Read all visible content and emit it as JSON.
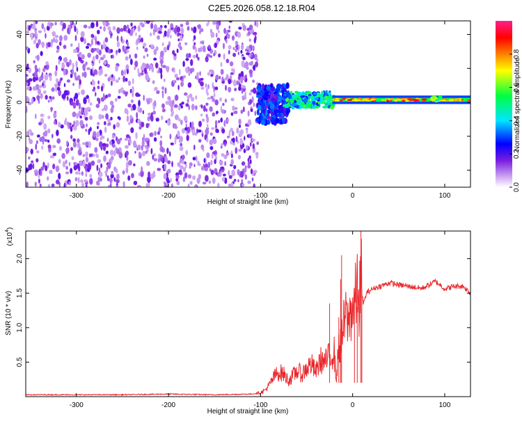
{
  "title": "C2E5.2026.058.12.18.R04",
  "chart_data": [
    {
      "type": "heatmap",
      "xlabel": "Height of straight line (km)",
      "ylabel": "Frequency (Hz)",
      "xlim": [
        -355,
        128
      ],
      "ylim": [
        -50,
        48
      ],
      "xticks": [
        -300,
        -200,
        -100,
        0,
        100
      ],
      "yticks": [
        -40,
        -20,
        0,
        20,
        40
      ],
      "colorbar": {
        "label": "Normalized spectral amplitude",
        "range": [
          0,
          1
        ],
        "ticks": [
          0.0,
          0.2,
          0.4,
          0.6,
          0.8
        ],
        "colors": [
          "#ffffff",
          "#d9b8f5",
          "#7a1ee0",
          "#0000ff",
          "#00e5ff",
          "#00ff40",
          "#ffff00",
          "#ff8000",
          "#ff0000",
          "#ff1e8c"
        ]
      },
      "regions": [
        {
          "x_range": [
            -355,
            -103
          ],
          "f_range": [
            -50,
            48
          ],
          "level": "broadband noise, amplitude 0.1-0.35"
        },
        {
          "x_range": [
            -103,
            -70
          ],
          "f_range": [
            -12,
            12
          ],
          "level": "0.2-0.5"
        },
        {
          "x_range": [
            -70,
            -20
          ],
          "f_range": [
            -4,
            6
          ],
          "level": "0.4-0.6"
        },
        {
          "x_range": [
            -20,
            128
          ],
          "f_range": [
            0.5,
            2.5
          ],
          "level": "0.7-0.95, narrow band near 1.5 Hz"
        }
      ]
    },
    {
      "type": "line",
      "xlabel": "Height of straight line (km)",
      "ylabel": "SNR (10 * v/v)",
      "yscale_label": "(x10",
      "yscale_exp": "4",
      "yscale_close": ")",
      "xlim": [
        -355,
        128
      ],
      "ylim": [
        0,
        2.4
      ],
      "xticks": [
        -300,
        -200,
        -100,
        0,
        100
      ],
      "yticks": [
        0.5,
        1.0,
        1.5,
        2.0
      ],
      "color": "#e8262a",
      "series": [
        {
          "x": [
            -355,
            -300,
            -250,
            -200,
            -150,
            -110,
            -100,
            -95,
            -90,
            -85,
            -80,
            -75,
            -70,
            -65,
            -60,
            -55,
            -50,
            -45,
            -40,
            -35,
            -30,
            -25,
            -20,
            -18,
            -15,
            -12,
            -10,
            -7,
            -5,
            -3,
            0,
            3,
            5,
            7,
            8,
            10,
            12,
            15,
            20,
            25,
            30,
            40,
            50,
            60,
            70,
            75,
            80,
            90,
            95,
            100,
            110,
            120,
            128
          ],
          "y": [
            0.02,
            0.02,
            0.02,
            0.03,
            0.02,
            0.03,
            0.05,
            0.08,
            0.15,
            0.25,
            0.3,
            0.28,
            0.2,
            0.25,
            0.32,
            0.27,
            0.35,
            0.4,
            0.3,
            0.45,
            0.42,
            0.5,
            0.55,
            0.2,
            0.6,
            0.7,
            0.85,
            1.0,
            0.9,
            1.0,
            1.1,
            1.2,
            1.3,
            1.05,
            1.35,
            1.45,
            1.35,
            1.5,
            1.55,
            1.58,
            1.6,
            1.65,
            1.62,
            1.6,
            1.58,
            1.57,
            1.6,
            1.67,
            1.62,
            1.56,
            1.6,
            1.6,
            1.5
          ]
        }
      ],
      "spikes": [
        {
          "x": -25,
          "y": 1.35
        },
        {
          "x": -15,
          "y": 1.15
        },
        {
          "x": -13,
          "y": 1.7
        },
        {
          "x": -12,
          "y": 2.05
        },
        {
          "x": 2,
          "y": 1.45
        },
        {
          "x": 5,
          "y": 1.3
        },
        {
          "x": 9,
          "y": 2.4
        },
        {
          "x": 10,
          "y": 1.55
        }
      ]
    }
  ]
}
